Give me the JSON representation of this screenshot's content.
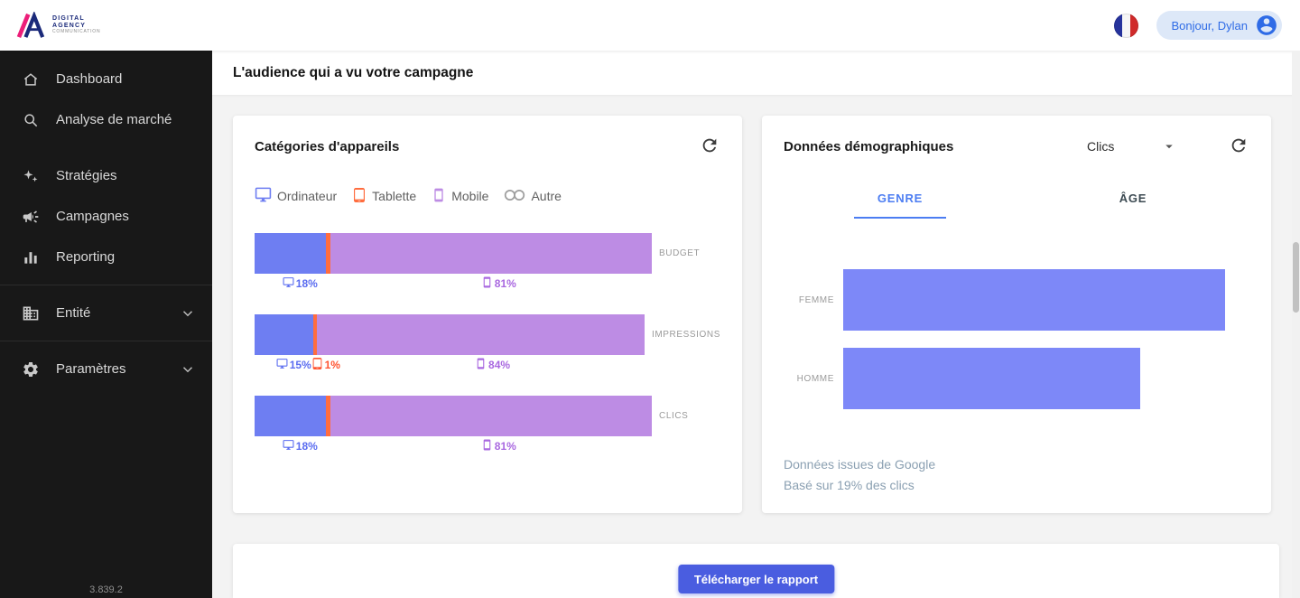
{
  "header": {
    "logo": {
      "line1": "DIGITAL",
      "line2": "AGENCY",
      "line3": "COMMUNICATION"
    },
    "greeting_button": "Bonjour, Dylan"
  },
  "sidebar": {
    "items": [
      {
        "label": "Dashboard",
        "icon": "home-icon"
      },
      {
        "label": "Analyse de marché",
        "icon": "search-icon"
      },
      {
        "label": "Stratégies",
        "icon": "sparkles-icon"
      },
      {
        "label": "Campagnes",
        "icon": "campaign-icon"
      },
      {
        "label": "Reporting",
        "icon": "bar-chart-icon"
      },
      {
        "label": "Entité",
        "icon": "building-icon",
        "expandable": true
      },
      {
        "label": "Paramètres",
        "icon": "gear-icon",
        "expandable": true
      }
    ],
    "version": "3.839.2"
  },
  "main": {
    "page_title": "L'audience qui a vu votre campagne",
    "download_button": "Télécharger le rapport"
  },
  "device_card": {
    "title": "Catégories d'appareils",
    "legend": [
      {
        "label": "Ordinateur",
        "icon": "desktop-icon",
        "color": "#6e7ef2"
      },
      {
        "label": "Tablette",
        "icon": "tablet-icon",
        "color": "#ff6d3f"
      },
      {
        "label": "Mobile",
        "icon": "mobile-icon",
        "color": "#bd8ce4"
      },
      {
        "label": "Autre",
        "icon": "circles-icon",
        "color": "#9e9e9e"
      }
    ],
    "chart_data": {
      "type": "bar",
      "stacked": true,
      "orientation": "horizontal",
      "unit": "%",
      "legend_position": "top",
      "categories": [
        "BUDGET",
        "IMPRESSIONS",
        "CLICS"
      ],
      "series": [
        {
          "name": "Ordinateur",
          "color": "#6e7ef2",
          "values": [
            18,
            15,
            18
          ]
        },
        {
          "name": "Tablette",
          "color": "#ff6d3f",
          "values": [
            1,
            1,
            1
          ]
        },
        {
          "name": "Mobile",
          "color": "#bd8ce4",
          "values": [
            81,
            84,
            81
          ]
        }
      ],
      "value_labels": [
        [
          {
            "icon": "desktop-icon",
            "text": "18%",
            "color": "#5a6cf0",
            "x_pct": 7
          },
          {
            "icon": "mobile-icon",
            "text": "81%",
            "color": "#a968e0",
            "x_pct": 57
          }
        ],
        [
          {
            "icon": "desktop-icon",
            "text": "15%",
            "color": "#5a6cf0",
            "x_pct": 5.5
          },
          {
            "icon": "tablet-icon",
            "text": "1%",
            "color": "#ff5330",
            "x_pct": 14.5
          },
          {
            "icon": "mobile-icon",
            "text": "84%",
            "color": "#a968e0",
            "x_pct": 56.5
          }
        ],
        [
          {
            "icon": "desktop-icon",
            "text": "18%",
            "color": "#5a6cf0",
            "x_pct": 7
          },
          {
            "icon": "mobile-icon",
            "text": "81%",
            "color": "#a968e0",
            "x_pct": 57
          }
        ]
      ]
    }
  },
  "demo_card": {
    "title": "Données démographiques",
    "metric_dropdown": {
      "value": "Clics"
    },
    "tabs": [
      {
        "label": "GENRE",
        "active": true
      },
      {
        "label": "ÂGE",
        "active": false
      }
    ],
    "chart_data": {
      "type": "bar",
      "orientation": "horizontal",
      "categories": [
        "FEMME",
        "HOMME"
      ],
      "values_relative_pct": [
        94,
        73
      ],
      "color": "#7d88f8",
      "axis_hidden": true,
      "metric": "Clics"
    },
    "footnotes": [
      "Données issues de Google",
      "Basé sur 19% des clics"
    ]
  }
}
